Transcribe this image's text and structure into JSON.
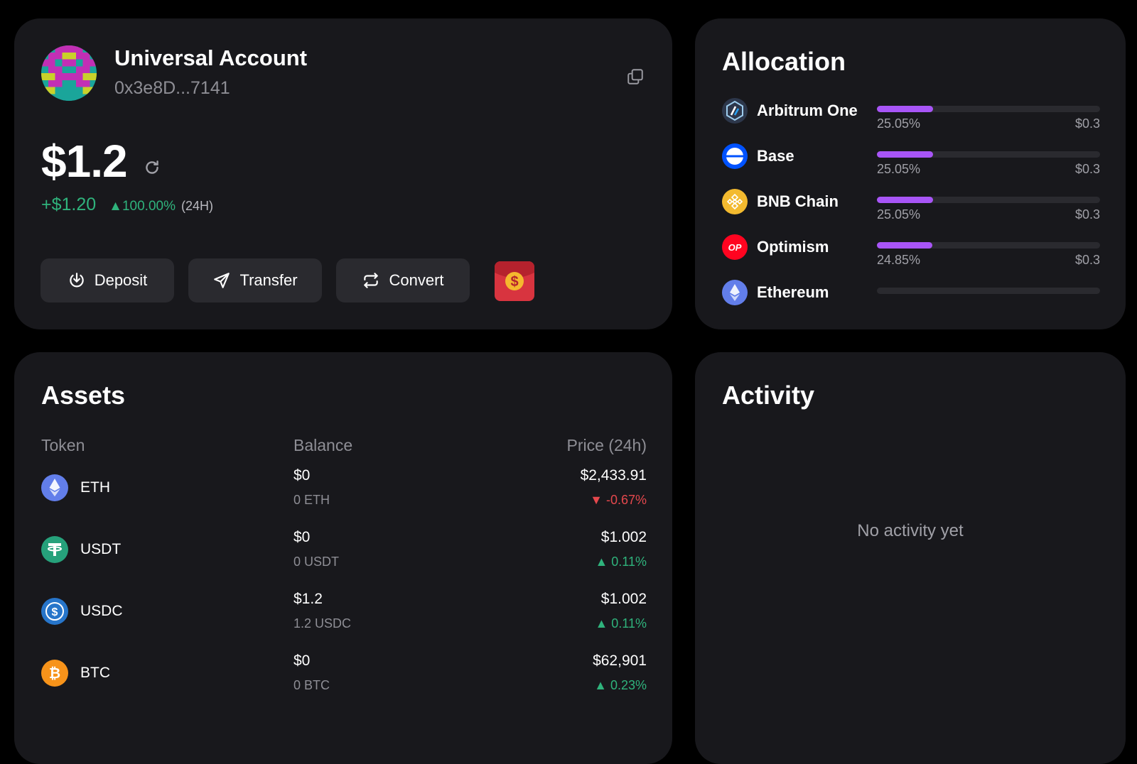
{
  "account": {
    "name": "Universal Account",
    "address": "0x3e8D...7141",
    "balance": "$1.2",
    "change_amount": "+$1.20",
    "change_percent": "▲100.00%",
    "change_period": "(24H)",
    "actions": {
      "deposit": "Deposit",
      "transfer": "Transfer",
      "convert": "Convert"
    },
    "icons": [
      "copy-icon",
      "refresh-icon",
      "download-icon",
      "send-icon",
      "swap-icon",
      "red-envelope-icon"
    ]
  },
  "allocation": {
    "title": "Allocation",
    "accent_color": "#a855f7",
    "items": [
      {
        "name": "Arbitrum One",
        "percent": "25.05%",
        "value": "$0.3",
        "fraction": 0.2505
      },
      {
        "name": "Base",
        "percent": "25.05%",
        "value": "$0.3",
        "fraction": 0.2505
      },
      {
        "name": "BNB Chain",
        "percent": "25.05%",
        "value": "$0.3",
        "fraction": 0.2505
      },
      {
        "name": "Optimism",
        "percent": "24.85%",
        "value": "$0.3",
        "fraction": 0.2485
      },
      {
        "name": "Ethereum",
        "percent": "",
        "value": "",
        "fraction": 0
      }
    ]
  },
  "assets": {
    "title": "Assets",
    "columns": {
      "token": "Token",
      "balance": "Balance",
      "price": "Price (24h)"
    },
    "rows": [
      {
        "symbol": "ETH",
        "balance_usd": "$0",
        "balance_amount": "0 ETH",
        "price": "$2,433.91",
        "change": "▼ -0.67%",
        "direction": "down"
      },
      {
        "symbol": "USDT",
        "balance_usd": "$0",
        "balance_amount": "0 USDT",
        "price": "$1.002",
        "change": "▲ 0.11%",
        "direction": "up"
      },
      {
        "symbol": "USDC",
        "balance_usd": "$1.2",
        "balance_amount": "1.2 USDC",
        "price": "$1.002",
        "change": "▲ 0.11%",
        "direction": "up"
      },
      {
        "symbol": "BTC",
        "balance_usd": "$0",
        "balance_amount": "0 BTC",
        "price": "$62,901",
        "change": "▲ 0.23%",
        "direction": "up"
      }
    ]
  },
  "activity": {
    "title": "Activity",
    "empty_text": "No activity yet"
  }
}
